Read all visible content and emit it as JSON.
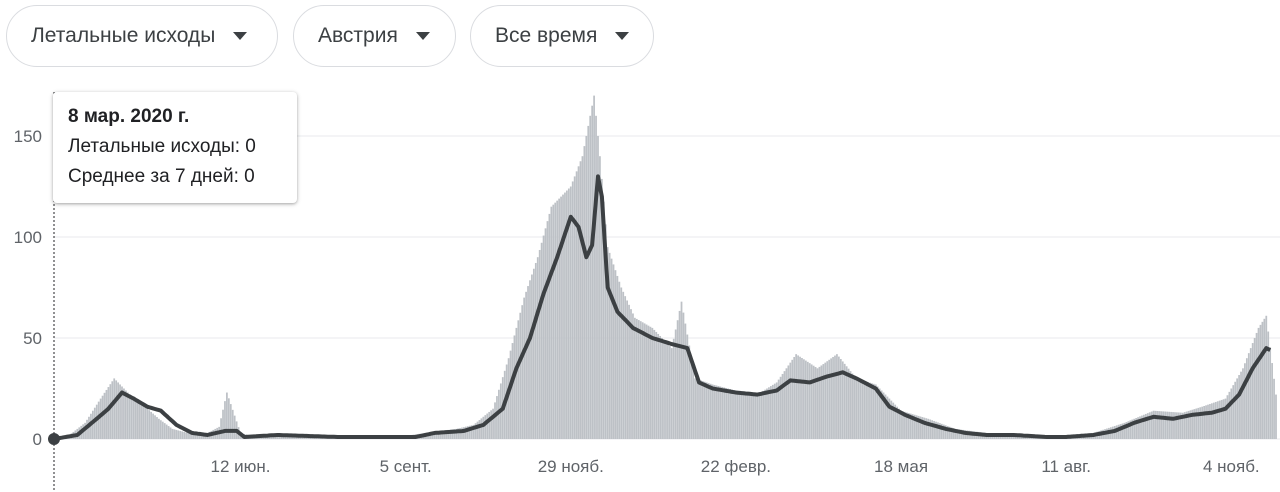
{
  "filters": {
    "metric": "Летальные исходы",
    "country": "Австрия",
    "period": "Все время"
  },
  "tooltip": {
    "date": "8 мар. 2020 г.",
    "deaths_label": "Летальные исходы",
    "deaths_value": "0",
    "avg_label": "Среднее за 7 дней",
    "avg_value": "0"
  },
  "colors": {
    "bars": "#bdc1c6",
    "average_line": "#3c4043",
    "grid": "#e8eaed",
    "axis_text": "#5f6368",
    "cursor": "#202124"
  },
  "chart_data": {
    "type": "bar",
    "x_start": "2020-03-08",
    "x_end": "2021-11-27",
    "ylim": [
      0,
      170
    ],
    "yticks": [
      0,
      50,
      100,
      150
    ],
    "ytick_labels": [
      "0",
      "50",
      "100",
      "150"
    ],
    "xtick_dates": [
      "2020-06-12",
      "2020-09-05",
      "2020-11-29",
      "2021-02-22",
      "2021-05-18",
      "2021-08-11",
      "2021-11-04"
    ],
    "xtick_labels": [
      "12 июн.",
      "5 сент.",
      "29 нояб.",
      "22 февр.",
      "18 мая",
      "11 авг.",
      "4 нояб."
    ],
    "grid": true,
    "selected_date": "2020-03-08",
    "series": [
      {
        "name": "Летальные исходы",
        "kind": "bar",
        "points": [
          [
            "2020-03-08",
            0
          ],
          [
            "2020-03-16",
            2
          ],
          [
            "2020-03-24",
            8
          ],
          [
            "2020-04-01",
            20
          ],
          [
            "2020-04-08",
            30
          ],
          [
            "2020-04-16",
            22
          ],
          [
            "2020-04-24",
            16
          ],
          [
            "2020-05-01",
            10
          ],
          [
            "2020-05-08",
            5
          ],
          [
            "2020-05-16",
            3
          ],
          [
            "2020-05-24",
            2
          ],
          [
            "2020-06-01",
            6
          ],
          [
            "2020-06-05",
            23
          ],
          [
            "2020-06-12",
            3
          ],
          [
            "2020-06-20",
            1
          ],
          [
            "2020-07-01",
            2
          ],
          [
            "2020-07-15",
            2
          ],
          [
            "2020-08-01",
            1
          ],
          [
            "2020-08-15",
            1
          ],
          [
            "2020-09-01",
            1
          ],
          [
            "2020-09-15",
            3
          ],
          [
            "2020-10-01",
            5
          ],
          [
            "2020-10-10",
            7
          ],
          [
            "2020-10-20",
            15
          ],
          [
            "2020-10-28",
            40
          ],
          [
            "2020-11-05",
            70
          ],
          [
            "2020-11-12",
            90
          ],
          [
            "2020-11-19",
            115
          ],
          [
            "2020-11-29",
            125
          ],
          [
            "2020-12-05",
            140
          ],
          [
            "2020-12-11",
            170
          ],
          [
            "2020-12-14",
            140
          ],
          [
            "2020-12-18",
            95
          ],
          [
            "2020-12-25",
            75
          ],
          [
            "2021-01-01",
            60
          ],
          [
            "2021-01-10",
            55
          ],
          [
            "2021-01-20",
            45
          ],
          [
            "2021-01-25",
            68
          ],
          [
            "2021-02-01",
            30
          ],
          [
            "2021-02-10",
            27
          ],
          [
            "2021-02-22",
            24
          ],
          [
            "2021-03-05",
            22
          ],
          [
            "2021-03-15",
            28
          ],
          [
            "2021-03-25",
            42
          ],
          [
            "2021-04-05",
            35
          ],
          [
            "2021-04-15",
            42
          ],
          [
            "2021-04-25",
            30
          ],
          [
            "2021-05-05",
            27
          ],
          [
            "2021-05-18",
            14
          ],
          [
            "2021-06-01",
            10
          ],
          [
            "2021-06-15",
            5
          ],
          [
            "2021-07-01",
            3
          ],
          [
            "2021-07-15",
            2
          ],
          [
            "2021-08-01",
            1
          ],
          [
            "2021-08-11",
            2
          ],
          [
            "2021-08-25",
            3
          ],
          [
            "2021-09-10",
            8
          ],
          [
            "2021-09-25",
            14
          ],
          [
            "2021-10-10",
            13
          ],
          [
            "2021-10-20",
            16
          ],
          [
            "2021-11-01",
            20
          ],
          [
            "2021-11-10",
            35
          ],
          [
            "2021-11-18",
            55
          ],
          [
            "2021-11-22",
            61
          ],
          [
            "2021-11-27",
            22
          ]
        ]
      },
      {
        "name": "Среднее за 7 дней",
        "kind": "line",
        "points": [
          [
            "2020-03-08",
            0
          ],
          [
            "2020-03-20",
            2
          ],
          [
            "2020-03-30",
            10
          ],
          [
            "2020-04-05",
            15
          ],
          [
            "2020-04-12",
            23
          ],
          [
            "2020-04-18",
            20
          ],
          [
            "2020-04-25",
            16
          ],
          [
            "2020-05-02",
            14
          ],
          [
            "2020-05-10",
            7
          ],
          [
            "2020-05-18",
            3
          ],
          [
            "2020-05-26",
            2
          ],
          [
            "2020-06-04",
            4
          ],
          [
            "2020-06-10",
            4
          ],
          [
            "2020-06-14",
            1
          ],
          [
            "2020-07-01",
            2
          ],
          [
            "2020-08-01",
            1
          ],
          [
            "2020-09-01",
            1
          ],
          [
            "2020-09-10",
            1
          ],
          [
            "2020-09-20",
            3
          ],
          [
            "2020-10-05",
            4
          ],
          [
            "2020-10-15",
            7
          ],
          [
            "2020-10-25",
            15
          ],
          [
            "2020-11-01",
            35
          ],
          [
            "2020-11-08",
            50
          ],
          [
            "2020-11-15",
            72
          ],
          [
            "2020-11-22",
            90
          ],
          [
            "2020-11-29",
            110
          ],
          [
            "2020-12-03",
            105
          ],
          [
            "2020-12-07",
            90
          ],
          [
            "2020-12-10",
            96
          ],
          [
            "2020-12-13",
            130
          ],
          [
            "2020-12-15",
            120
          ],
          [
            "2020-12-18",
            75
          ],
          [
            "2020-12-23",
            63
          ],
          [
            "2020-12-31",
            55
          ],
          [
            "2021-01-10",
            50
          ],
          [
            "2021-01-20",
            47
          ],
          [
            "2021-01-28",
            45
          ],
          [
            "2021-02-03",
            28
          ],
          [
            "2021-02-10",
            25
          ],
          [
            "2021-02-22",
            23
          ],
          [
            "2021-03-05",
            22
          ],
          [
            "2021-03-15",
            24
          ],
          [
            "2021-03-22",
            29
          ],
          [
            "2021-04-01",
            28
          ],
          [
            "2021-04-10",
            31
          ],
          [
            "2021-04-18",
            33
          ],
          [
            "2021-04-25",
            30
          ],
          [
            "2021-05-05",
            25
          ],
          [
            "2021-05-12",
            16
          ],
          [
            "2021-05-20",
            12
          ],
          [
            "2021-05-30",
            8
          ],
          [
            "2021-06-10",
            5
          ],
          [
            "2021-06-20",
            3
          ],
          [
            "2021-07-01",
            2
          ],
          [
            "2021-07-15",
            2
          ],
          [
            "2021-08-01",
            1
          ],
          [
            "2021-08-11",
            1
          ],
          [
            "2021-08-25",
            2
          ],
          [
            "2021-09-05",
            4
          ],
          [
            "2021-09-15",
            8
          ],
          [
            "2021-09-25",
            11
          ],
          [
            "2021-10-05",
            10
          ],
          [
            "2021-10-15",
            12
          ],
          [
            "2021-10-25",
            13
          ],
          [
            "2021-11-01",
            15
          ],
          [
            "2021-11-08",
            22
          ],
          [
            "2021-11-15",
            35
          ],
          [
            "2021-11-22",
            45
          ],
          [
            "2021-11-24",
            44
          ]
        ]
      }
    ]
  }
}
